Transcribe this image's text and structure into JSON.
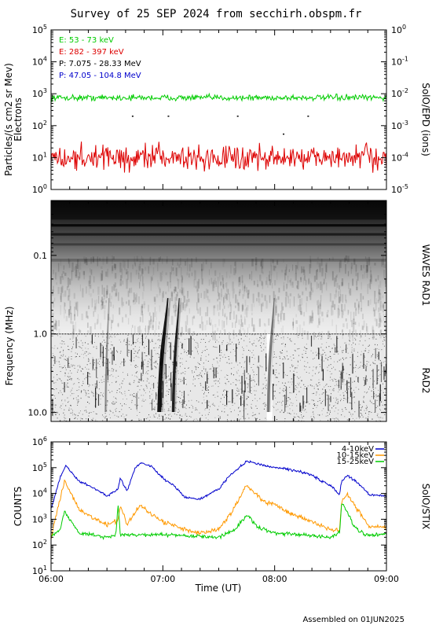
{
  "title": "Survey of 25 SEP 2024 from secchirh.obspm.fr",
  "footer": "Assembled on 01JUN2025",
  "x_axis": {
    "label": "Time (UT)",
    "ticks": [
      "06:00",
      "07:00",
      "08:00",
      "09:00"
    ]
  },
  "chart_data": [
    {
      "type": "line",
      "name": "particles",
      "ylabel": "Particles/(s cm2 sr Mev)",
      "ylabel2": "Electrons",
      "right_label": "SolO/EPD (ions)",
      "ylim": [
        1,
        100000
      ],
      "yscale": "log",
      "yticks": [
        "10^0",
        "10^1",
        "10^2",
        "10^3",
        "10^4",
        "10^5"
      ],
      "y2lim": [
        1e-05,
        1
      ],
      "y2ticks": [
        "10^-5",
        "10^-4",
        "10^-3",
        "10^-2",
        "10^-1",
        "10^0"
      ],
      "legend_position": "top-left",
      "series": [
        {
          "name": "E: 53 - 73 keV",
          "color": "#00cc00",
          "level": 750,
          "scatter_decades": 0.08
        },
        {
          "name": "E: 282 - 397 keV",
          "color": "#dd0000",
          "level": 10,
          "scatter_decades": 0.35
        },
        {
          "name": "P: 7.075 - 28.33 MeV",
          "color": "#000000",
          "points": [
            [
              6.73,
              200
            ],
            [
              7.05,
              200
            ],
            [
              7.67,
              200
            ],
            [
              8.08,
              55
            ],
            [
              8.3,
              200
            ]
          ]
        },
        {
          "name": "P: 47.05 - 104.8 MeV",
          "color": "#0000cc",
          "points": []
        }
      ]
    },
    {
      "type": "heatmap",
      "name": "radio",
      "ylabel": "Frequency (MHz)",
      "yscale": "log",
      "ylim": [
        0.02,
        13
      ],
      "yticks": [
        "0.1",
        "1.0",
        "10.0"
      ],
      "right_labels": [
        "WAVES RAD1",
        "RAD2"
      ],
      "band_split_mhz": 1.0,
      "bursts": [
        {
          "start": 6.95,
          "end": 7.05,
          "strength": 0.9
        },
        {
          "start": 7.08,
          "end": 7.15,
          "strength": 0.85
        },
        {
          "start": 7.93,
          "end": 8.0,
          "strength": 0.5
        },
        {
          "start": 6.48,
          "end": 6.52,
          "strength": 0.4
        }
      ]
    },
    {
      "type": "line",
      "name": "stix",
      "ylabel": "COUNTS",
      "right_label": "SolO/STIX",
      "yscale": "log",
      "ylim": [
        10,
        1000000
      ],
      "yticks": [
        "10^1",
        "10^2",
        "10^3",
        "10^4",
        "10^5",
        "10^6"
      ],
      "legend_position": "top-right",
      "series": [
        {
          "name": "4-10keV",
          "color": "#0000cc",
          "x": [
            6.0,
            6.08,
            6.13,
            6.25,
            6.4,
            6.5,
            6.6,
            6.62,
            6.68,
            6.75,
            6.8,
            6.9,
            7.0,
            7.1,
            7.2,
            7.33,
            7.5,
            7.6,
            7.75,
            7.9,
            8.0,
            8.1,
            8.3,
            8.5,
            8.58,
            8.6,
            8.65,
            8.75,
            8.85,
            9.0
          ],
          "values": [
            2500,
            40000,
            120000,
            30000,
            15000,
            8000,
            15000,
            40000,
            12000,
            90000,
            160000,
            110000,
            40000,
            20000,
            7000,
            6000,
            15000,
            50000,
            180000,
            120000,
            100000,
            90000,
            60000,
            20000,
            9000,
            30000,
            50000,
            25000,
            9000,
            8000
          ]
        },
        {
          "name": "10-15keV",
          "color": "#ff9900",
          "x": [
            6.0,
            6.08,
            6.12,
            6.25,
            6.4,
            6.5,
            6.6,
            6.62,
            6.68,
            6.75,
            6.8,
            6.9,
            7.0,
            7.2,
            7.33,
            7.5,
            7.6,
            7.75,
            7.9,
            8.0,
            8.1,
            8.3,
            8.5,
            8.58,
            8.6,
            8.65,
            8.75,
            8.85,
            9.0
          ],
          "values": [
            200,
            6000,
            30000,
            2500,
            1000,
            600,
            900,
            3500,
            600,
            1800,
            3500,
            1500,
            800,
            400,
            300,
            400,
            1500,
            20000,
            5000,
            4000,
            2000,
            900,
            400,
            350,
            5000,
            9000,
            2000,
            500,
            500
          ]
        },
        {
          "name": "15-25keV",
          "color": "#00cc00",
          "x": [
            6.0,
            6.08,
            6.12,
            6.25,
            6.5,
            6.58,
            6.6,
            6.62,
            7.0,
            7.5,
            7.65,
            7.75,
            7.85,
            8.0,
            8.5,
            8.58,
            8.6,
            8.63,
            8.7,
            8.8,
            9.0
          ],
          "values": [
            200,
            400,
            2000,
            300,
            200,
            250,
            4000,
            250,
            250,
            200,
            400,
            1500,
            500,
            300,
            200,
            300,
            4000,
            3000,
            600,
            250,
            250
          ]
        }
      ]
    }
  ]
}
